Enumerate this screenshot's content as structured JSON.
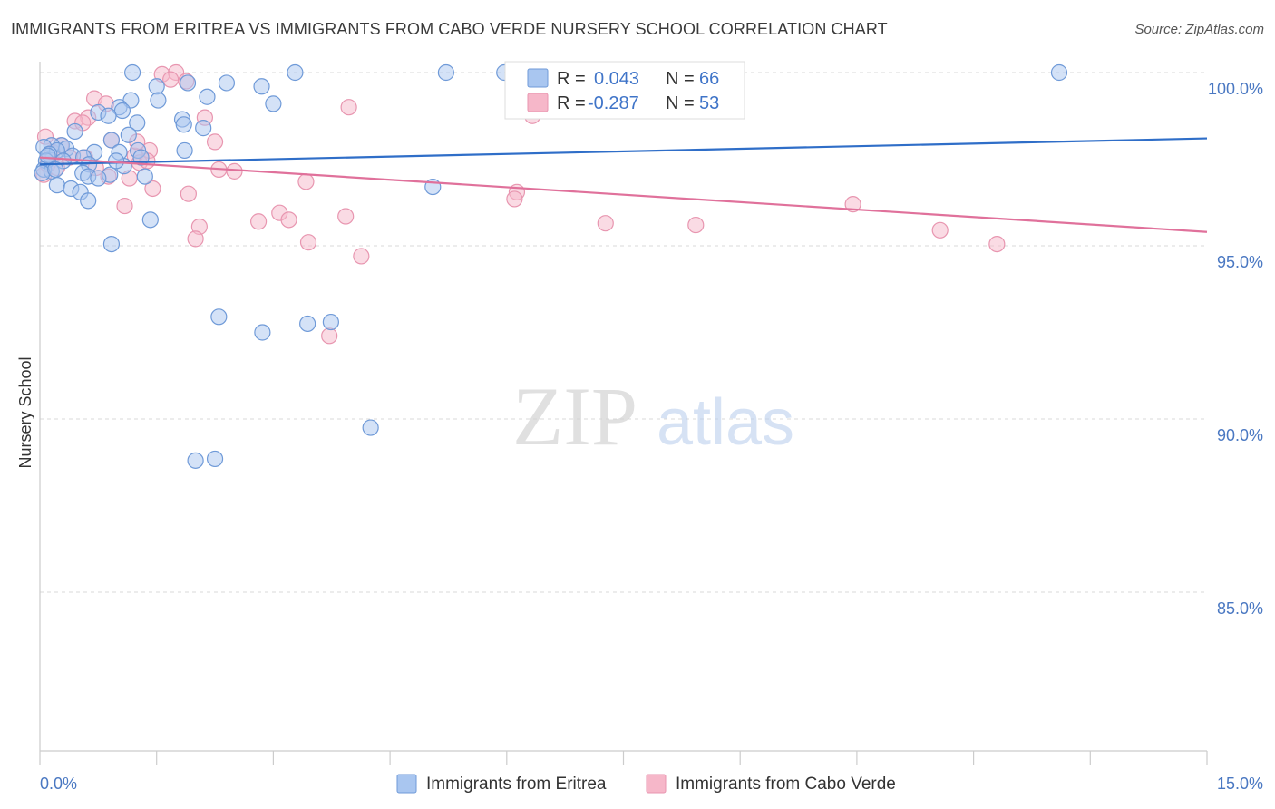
{
  "title": "IMMIGRANTS FROM ERITREA VS IMMIGRANTS FROM CABO VERDE NURSERY SCHOOL CORRELATION CHART",
  "source": "Source: ZipAtlas.com",
  "watermark": {
    "zip": "ZIP",
    "atlas": "atlas"
  },
  "colors": {
    "eritrea_fill": "#a9c6f0",
    "eritrea_stroke": "#6f9ad8",
    "eritrea_line": "#2f6ec8",
    "cabo_fill": "#f6b7c9",
    "cabo_stroke": "#e896b0",
    "cabo_line": "#e0719b",
    "axis_text": "#4a78c2",
    "grid": "#d8d8d8"
  },
  "legend_top": {
    "rows": [
      {
        "r_label": "R =",
        "r_value": "0.043",
        "n_label": "N =",
        "n_value": "66"
      },
      {
        "r_label": "R =",
        "r_value": "-0.287",
        "n_label": "N =",
        "n_value": "53"
      }
    ]
  },
  "chart_data": {
    "type": "scatter",
    "title": "IMMIGRANTS FROM ERITREA VS IMMIGRANTS FROM CABO VERDE NURSERY SCHOOL CORRELATION CHART",
    "xlabel": "",
    "ylabel": "Nursery School",
    "xlim": [
      0,
      15
    ],
    "ylim": [
      80,
      100.8
    ],
    "x_tick_labels": [
      "0.0%",
      "15.0%"
    ],
    "y_ticks": [
      85,
      90,
      95,
      100
    ],
    "y_tick_labels": [
      "85.0%",
      "90.0%",
      "95.0%",
      "100.0%"
    ],
    "grid": true,
    "legend_placement": "bottom",
    "series": [
      {
        "name": "Immigrants from Eritrea",
        "R": 0.043,
        "N": 66,
        "trend": {
          "x": [
            0,
            15
          ],
          "y": [
            97.35,
            98.1
          ]
        },
        "points": [
          [
            1.19,
            100.0
          ],
          [
            3.28,
            100.0
          ],
          [
            5.22,
            100.0
          ],
          [
            5.97,
            100.0
          ],
          [
            13.1,
            100.0
          ],
          [
            1.9,
            99.7
          ],
          [
            2.4,
            99.7
          ],
          [
            2.85,
            99.6
          ],
          [
            1.5,
            99.6
          ],
          [
            2.15,
            99.3
          ],
          [
            1.17,
            99.2
          ],
          [
            1.52,
            99.2
          ],
          [
            3.0,
            99.1
          ],
          [
            1.02,
            99.0
          ],
          [
            1.06,
            98.9
          ],
          [
            0.75,
            98.85
          ],
          [
            0.88,
            98.75
          ],
          [
            1.25,
            98.55
          ],
          [
            1.83,
            98.65
          ],
          [
            1.85,
            98.5
          ],
          [
            2.1,
            98.4
          ],
          [
            0.45,
            98.3
          ],
          [
            1.14,
            98.2
          ],
          [
            0.92,
            98.05
          ],
          [
            0.28,
            97.9
          ],
          [
            0.15,
            97.9
          ],
          [
            0.05,
            97.85
          ],
          [
            0.34,
            97.8
          ],
          [
            0.22,
            97.75
          ],
          [
            0.7,
            97.7
          ],
          [
            1.02,
            97.7
          ],
          [
            1.26,
            97.75
          ],
          [
            1.86,
            97.75
          ],
          [
            0.12,
            97.65
          ],
          [
            0.42,
            97.6
          ],
          [
            0.56,
            97.55
          ],
          [
            1.3,
            97.55
          ],
          [
            0.08,
            97.45
          ],
          [
            0.3,
            97.45
          ],
          [
            0.63,
            97.35
          ],
          [
            1.08,
            97.3
          ],
          [
            0.05,
            97.2
          ],
          [
            0.15,
            97.15
          ],
          [
            0.55,
            97.1
          ],
          [
            0.9,
            97.05
          ],
          [
            1.35,
            97.0
          ],
          [
            0.03,
            97.1
          ],
          [
            0.62,
            97.0
          ],
          [
            0.75,
            96.95
          ],
          [
            0.22,
            96.75
          ],
          [
            0.4,
            96.65
          ],
          [
            0.52,
            96.55
          ],
          [
            0.62,
            96.3
          ],
          [
            5.05,
            96.7
          ],
          [
            1.42,
            95.75
          ],
          [
            0.92,
            95.05
          ],
          [
            2.3,
            92.95
          ],
          [
            2.86,
            92.5
          ],
          [
            3.44,
            92.75
          ],
          [
            3.74,
            92.8
          ],
          [
            4.25,
            89.75
          ],
          [
            2.0,
            88.8
          ],
          [
            2.25,
            88.85
          ],
          [
            0.98,
            97.45
          ],
          [
            0.1,
            97.6
          ],
          [
            0.2,
            97.2
          ]
        ]
      },
      {
        "name": "Immigrants from Cabo Verde",
        "R": -0.287,
        "N": 53,
        "trend": {
          "x": [
            0,
            15
          ],
          "y": [
            97.55,
            95.4
          ]
        },
        "points": [
          [
            1.57,
            99.95
          ],
          [
            1.75,
            100.0
          ],
          [
            1.68,
            99.8
          ],
          [
            1.88,
            99.75
          ],
          [
            0.7,
            99.25
          ],
          [
            0.85,
            99.1
          ],
          [
            3.97,
            99.0
          ],
          [
            6.33,
            98.75
          ],
          [
            0.62,
            98.7
          ],
          [
            0.45,
            98.6
          ],
          [
            0.55,
            98.55
          ],
          [
            2.12,
            98.7
          ],
          [
            0.07,
            98.15
          ],
          [
            0.92,
            98.05
          ],
          [
            2.25,
            98.0
          ],
          [
            0.27,
            97.9
          ],
          [
            1.41,
            97.75
          ],
          [
            0.58,
            97.55
          ],
          [
            1.22,
            97.6
          ],
          [
            0.38,
            97.55
          ],
          [
            1.28,
            97.4
          ],
          [
            1.38,
            97.45
          ],
          [
            0.1,
            97.35
          ],
          [
            0.22,
            97.25
          ],
          [
            2.3,
            97.2
          ],
          [
            2.5,
            97.15
          ],
          [
            0.88,
            97.0
          ],
          [
            1.15,
            96.95
          ],
          [
            0.05,
            97.05
          ],
          [
            3.42,
            96.85
          ],
          [
            1.45,
            96.65
          ],
          [
            1.91,
            96.5
          ],
          [
            6.13,
            96.55
          ],
          [
            6.1,
            96.35
          ],
          [
            1.09,
            96.15
          ],
          [
            10.45,
            96.2
          ],
          [
            3.08,
            95.95
          ],
          [
            2.81,
            95.7
          ],
          [
            3.2,
            95.75
          ],
          [
            3.93,
            95.85
          ],
          [
            2.05,
            95.55
          ],
          [
            7.27,
            95.65
          ],
          [
            8.43,
            95.6
          ],
          [
            11.57,
            95.45
          ],
          [
            2.0,
            95.2
          ],
          [
            3.45,
            95.1
          ],
          [
            12.3,
            95.05
          ],
          [
            4.13,
            94.7
          ],
          [
            3.72,
            92.4
          ],
          [
            8.4,
            100.0
          ],
          [
            0.72,
            97.25
          ],
          [
            1.25,
            98.0
          ],
          [
            0.16,
            97.7
          ]
        ]
      }
    ]
  }
}
